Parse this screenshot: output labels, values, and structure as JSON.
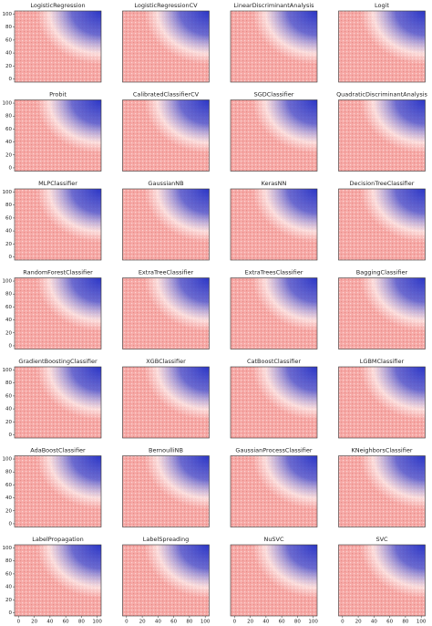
{
  "chart_data": [
    {
      "type": "image",
      "title": "LogisticRegression",
      "ylim": [
        -5,
        105
      ],
      "yticks": [
        0,
        20,
        40,
        60,
        80,
        100
      ]
    },
    {
      "type": "image",
      "title": "LogisticRegressionCV"
    },
    {
      "type": "image",
      "title": "LinearDiscriminantAnalysis"
    },
    {
      "type": "image",
      "title": "Logit"
    },
    {
      "type": "image",
      "title": "Probit",
      "ylim": [
        -5,
        105
      ],
      "yticks": [
        0,
        20,
        40,
        60,
        80,
        100
      ]
    },
    {
      "type": "image",
      "title": "CalibratedClassifierCV"
    },
    {
      "type": "image",
      "title": "SGDClassifier"
    },
    {
      "type": "image",
      "title": "QuadraticDiscriminantAnalysis"
    },
    {
      "type": "image",
      "title": "MLPClassifier",
      "ylim": [
        -5,
        105
      ],
      "yticks": [
        0,
        20,
        40,
        60,
        80,
        100
      ]
    },
    {
      "type": "image",
      "title": "GaussianNB"
    },
    {
      "type": "image",
      "title": "KerasNN"
    },
    {
      "type": "image",
      "title": "DecisionTreeClassifier"
    },
    {
      "type": "image",
      "title": "RandomForestClassifier",
      "ylim": [
        -5,
        105
      ],
      "yticks": [
        0,
        20,
        40,
        60,
        80,
        100
      ]
    },
    {
      "type": "image",
      "title": "ExtraTreeClassifier"
    },
    {
      "type": "image",
      "title": "ExtraTreesClassifier"
    },
    {
      "type": "image",
      "title": "BaggingClassifier"
    },
    {
      "type": "image",
      "title": "GradientBoostingClassifier",
      "ylim": [
        -5,
        105
      ],
      "yticks": [
        0,
        20,
        40,
        60,
        80,
        100
      ]
    },
    {
      "type": "image",
      "title": "XGBClassifier"
    },
    {
      "type": "image",
      "title": "CatBoostClassifier"
    },
    {
      "type": "image",
      "title": "LGBMClassifier"
    },
    {
      "type": "image",
      "title": "AdaBoostClassifier",
      "ylim": [
        -5,
        105
      ],
      "yticks": [
        0,
        20,
        40,
        60,
        80,
        100
      ]
    },
    {
      "type": "image",
      "title": "BernoulliNB"
    },
    {
      "type": "image",
      "title": "GaussianProcessClassifier"
    },
    {
      "type": "image",
      "title": "KNeighborsClassifier"
    },
    {
      "type": "image",
      "title": "LabelPropagation",
      "xlim": [
        -5,
        105
      ],
      "xticks": [
        0,
        20,
        40,
        60,
        80,
        100
      ],
      "ylim": [
        -5,
        105
      ],
      "yticks": [
        0,
        20,
        40,
        60,
        80,
        100
      ]
    },
    {
      "type": "image",
      "title": "LabelSpreading",
      "xlim": [
        -5,
        105
      ],
      "xticks": [
        0,
        20,
        40,
        60,
        80,
        100
      ]
    },
    {
      "type": "image",
      "title": "NuSVC",
      "xlim": [
        -5,
        105
      ],
      "xticks": [
        0,
        20,
        40,
        60,
        80,
        100
      ]
    },
    {
      "type": "image",
      "title": "SVC",
      "xlim": [
        -5,
        105
      ],
      "xticks": [
        0,
        20,
        40,
        60,
        80,
        100
      ]
    }
  ]
}
